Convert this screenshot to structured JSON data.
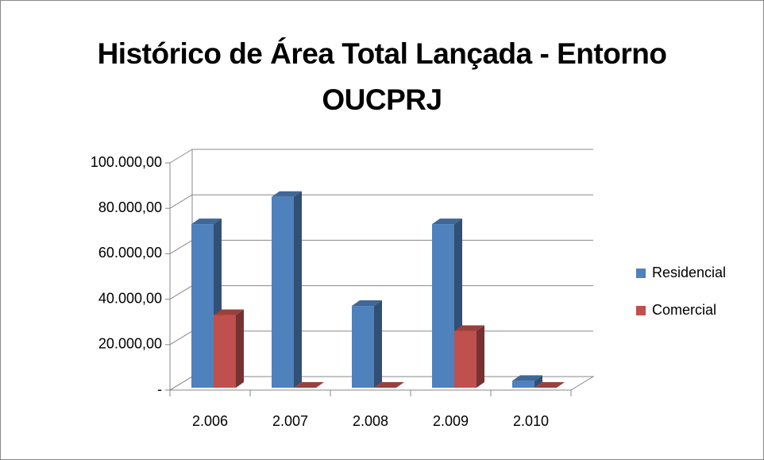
{
  "chart_data": {
    "type": "bar3d",
    "title": "Histórico de Área Total Lançada - Entorno OUCPRJ",
    "categories": [
      "2.006",
      "2.007",
      "2.008",
      "2.009",
      "2.010"
    ],
    "series": [
      {
        "name": "Residencial",
        "color": "#4f81bd",
        "values": [
          72000,
          84000,
          36000,
          72000,
          3000
        ]
      },
      {
        "name": "Comercial",
        "color": "#c0504d",
        "values": [
          32000,
          0,
          0,
          25000,
          0
        ]
      }
    ],
    "ylim": [
      0,
      100000
    ],
    "yticks": [
      {
        "value": 0,
        "label": "-"
      },
      {
        "value": 20000,
        "label": "20.000,00"
      },
      {
        "value": 40000,
        "label": "40.000,00"
      },
      {
        "value": 60000,
        "label": "60.000,00"
      },
      {
        "value": 80000,
        "label": "80.000,00"
      },
      {
        "value": 100000,
        "label": "100.000,00"
      }
    ],
    "grid": true,
    "legend": "right"
  }
}
